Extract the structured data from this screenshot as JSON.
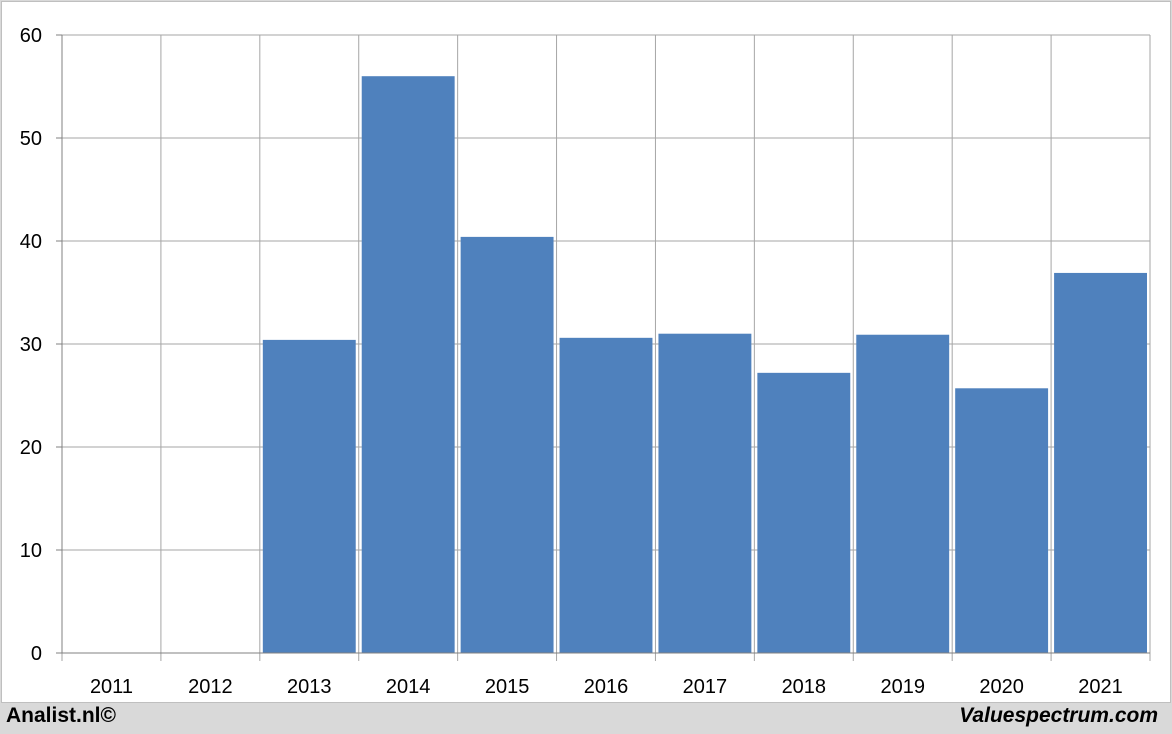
{
  "chart_data": {
    "type": "bar",
    "categories": [
      "2011",
      "2012",
      "2013",
      "2014",
      "2015",
      "2016",
      "2017",
      "2018",
      "2019",
      "2020",
      "2021"
    ],
    "values": [
      null,
      null,
      30.4,
      56.0,
      40.4,
      30.6,
      31.0,
      27.2,
      30.9,
      25.7,
      36.9
    ],
    "ylim": [
      0,
      60
    ],
    "yticks": [
      0,
      10,
      20,
      30,
      40,
      50,
      60
    ],
    "grid": true,
    "bar_color": "#4f81bd",
    "title": "",
    "xlabel": "",
    "ylabel": ""
  },
  "footer": {
    "left_text": "Analist.nl©",
    "right_text": "Valuespectrum.com"
  }
}
